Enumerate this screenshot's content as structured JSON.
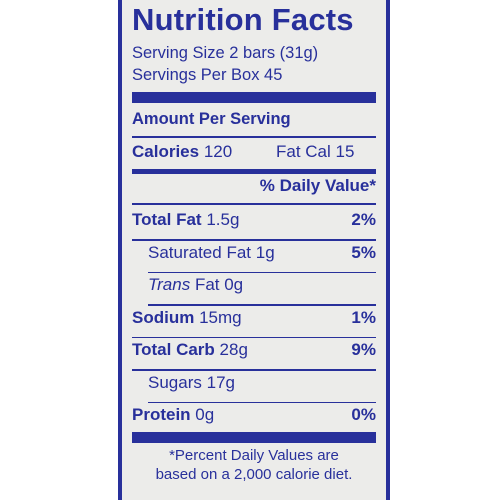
{
  "title": "Nutrition Facts",
  "serving_size": "Serving Size 2 bars (31g)",
  "servings_per": "Servings Per Box 45",
  "amount_per_serving": "Amount Per Serving",
  "calories": {
    "label": "Calories",
    "value": "120",
    "fat_cal_label": "Fat Cal",
    "fat_cal_value": "15"
  },
  "daily_value_header": "% Daily Value*",
  "nutrients": [
    {
      "name": "Total Fat",
      "amount": "1.5g",
      "dv": "2%",
      "bold": true,
      "italic": false,
      "indent": false
    },
    {
      "name": "Saturated Fat",
      "amount": "1g",
      "dv": "5%",
      "bold": false,
      "italic": false,
      "indent": true
    },
    {
      "name": "Trans",
      "amount": "Fat 0g",
      "dv": "",
      "bold": false,
      "italic": true,
      "indent": true
    },
    {
      "name": "Sodium",
      "amount": "15mg",
      "dv": "1%",
      "bold": true,
      "italic": false,
      "indent": false
    },
    {
      "name": "Total Carb",
      "amount": "28g",
      "dv": "9%",
      "bold": true,
      "italic": false,
      "indent": false
    },
    {
      "name": "Sugars",
      "amount": "17g",
      "dv": "",
      "bold": false,
      "italic": false,
      "indent": true
    },
    {
      "name": "Protein",
      "amount": "0g",
      "dv": "0%",
      "bold": true,
      "italic": false,
      "indent": false
    }
  ],
  "footnote_line1": "*Percent Daily Values are",
  "footnote_line2": "based on a 2,000 calorie diet.",
  "colors": {
    "ink": "#28309b",
    "paper": "#ececea"
  }
}
